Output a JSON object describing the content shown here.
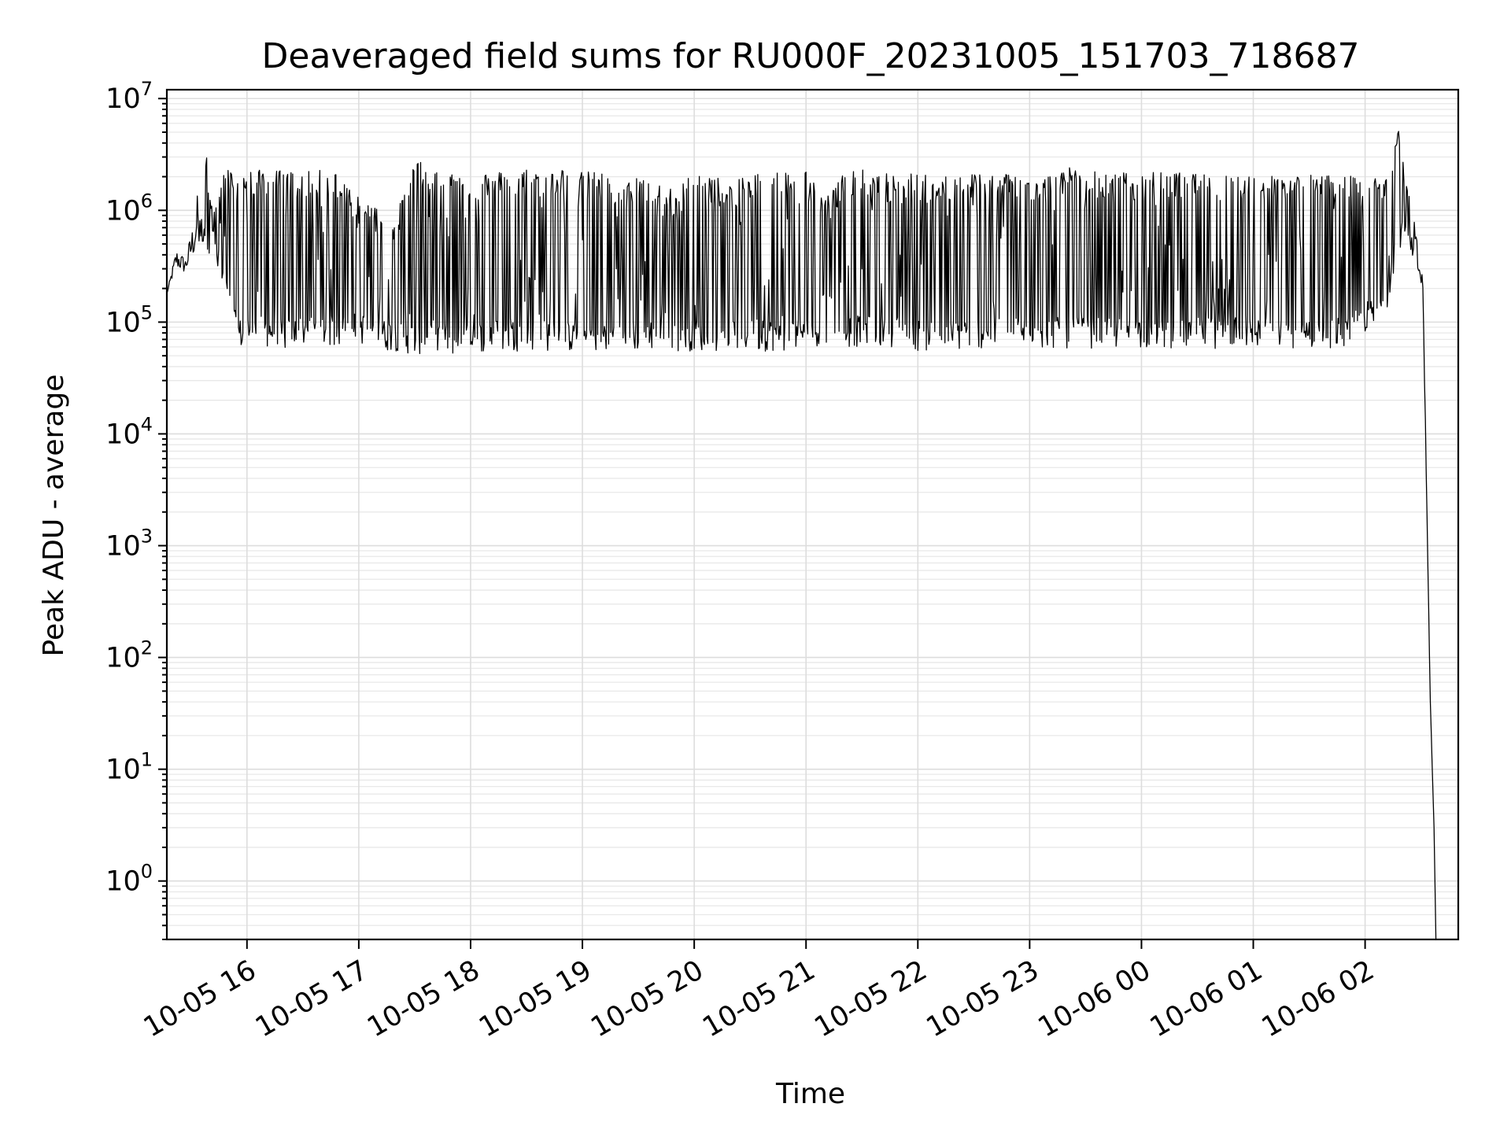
{
  "chart_data": {
    "type": "line",
    "title": "Deaveraged field sums for RU000F_20231005_151703_718687",
    "xlabel": "Time",
    "ylabel": "Peak ADU - average",
    "yscale": "log",
    "ylim": [
      0.3,
      12000000
    ],
    "xlim": [
      "2023-10-05 15:17",
      "2023-10-06 02:50"
    ],
    "grid": true,
    "legend": "none",
    "line_color": "#000000",
    "x_ticks": [
      {
        "value": "2023-10-05 16:00",
        "label": "10-05 16"
      },
      {
        "value": "2023-10-05 17:00",
        "label": "10-05 17"
      },
      {
        "value": "2023-10-05 18:00",
        "label": "10-05 18"
      },
      {
        "value": "2023-10-05 19:00",
        "label": "10-05 19"
      },
      {
        "value": "2023-10-05 20:00",
        "label": "10-05 20"
      },
      {
        "value": "2023-10-05 21:00",
        "label": "10-05 21"
      },
      {
        "value": "2023-10-05 22:00",
        "label": "10-05 22"
      },
      {
        "value": "2023-10-05 23:00",
        "label": "10-05 23"
      },
      {
        "value": "2023-10-06 00:00",
        "label": "10-06 00"
      },
      {
        "value": "2023-10-06 01:00",
        "label": "10-06 01"
      },
      {
        "value": "2023-10-06 02:00",
        "label": "10-06 02"
      }
    ],
    "y_ticks": [
      {
        "value": 1,
        "base": "10",
        "exp": "0"
      },
      {
        "value": 10,
        "base": "10",
        "exp": "1"
      },
      {
        "value": 100,
        "base": "10",
        "exp": "2"
      },
      {
        "value": 1000,
        "base": "10",
        "exp": "3"
      },
      {
        "value": 10000,
        "base": "10",
        "exp": "4"
      },
      {
        "value": 100000,
        "base": "10",
        "exp": "5"
      },
      {
        "value": 1000000,
        "base": "10",
        "exp": "6"
      },
      {
        "value": 10000000,
        "base": "10",
        "exp": "7"
      }
    ],
    "x": [
      "2023-10-05 15:17",
      "2023-10-05 15:22",
      "2023-10-05 15:27",
      "2023-10-05 15:32",
      "2023-10-05 15:37",
      "2023-10-05 15:42",
      "2023-10-05 15:48",
      "2023-10-05 15:55",
      "2023-10-05 16:02",
      "2023-10-05 16:10",
      "2023-10-05 16:20",
      "2023-10-05 16:30",
      "2023-10-05 16:40",
      "2023-10-05 16:50",
      "2023-10-05 17:00",
      "2023-10-05 17:10",
      "2023-10-05 17:20",
      "2023-10-05 17:30",
      "2023-10-05 17:40",
      "2023-10-05 17:50",
      "2023-10-05 18:00",
      "2023-10-05 18:10",
      "2023-10-05 18:20",
      "2023-10-05 18:30",
      "2023-10-05 18:40",
      "2023-10-05 18:50",
      "2023-10-05 19:00",
      "2023-10-05 19:10",
      "2023-10-05 19:20",
      "2023-10-05 19:30",
      "2023-10-05 19:40",
      "2023-10-05 19:50",
      "2023-10-05 20:00",
      "2023-10-05 20:10",
      "2023-10-05 20:20",
      "2023-10-05 20:30",
      "2023-10-05 20:40",
      "2023-10-05 20:50",
      "2023-10-05 21:00",
      "2023-10-05 21:10",
      "2023-10-05 21:20",
      "2023-10-05 21:30",
      "2023-10-05 21:40",
      "2023-10-05 21:50",
      "2023-10-05 22:00",
      "2023-10-05 22:10",
      "2023-10-05 22:20",
      "2023-10-05 22:30",
      "2023-10-05 22:40",
      "2023-10-05 22:50",
      "2023-10-05 23:00",
      "2023-10-05 23:10",
      "2023-10-05 23:20",
      "2023-10-05 23:30",
      "2023-10-05 23:40",
      "2023-10-05 23:50",
      "2023-10-06 00:00",
      "2023-10-06 00:10",
      "2023-10-06 00:20",
      "2023-10-06 00:30",
      "2023-10-06 00:40",
      "2023-10-06 00:50",
      "2023-10-06 01:00",
      "2023-10-06 01:10",
      "2023-10-06 01:20",
      "2023-10-06 01:30",
      "2023-10-06 01:40",
      "2023-10-06 01:50",
      "2023-10-06 02:00",
      "2023-10-06 02:10",
      "2023-10-06 02:18",
      "2023-10-06 02:25",
      "2023-10-06 02:31",
      "2023-10-06 02:35",
      "2023-10-06 02:37",
      "2023-10-06 02:38"
    ],
    "y": [
      180000,
      450000,
      330000,
      850000,
      4400000,
      600000,
      2200000,
      200000,
      90000,
      1400000,
      2300000,
      2000000,
      2200000,
      1800000,
      120000,
      80000,
      150000,
      2500000,
      2300000,
      1100000,
      2200000,
      120000,
      2000000,
      2400000,
      1800000,
      2200000,
      90000,
      2300000,
      80000,
      1200000,
      90000,
      1500000,
      2200000,
      70000,
      60000,
      1800000,
      700000,
      2200000,
      800000,
      90000,
      2000000,
      2200000,
      70000,
      1900000,
      2200000,
      60000,
      2100000,
      1800000,
      2200000,
      90000,
      120000,
      70000,
      2100000,
      90000,
      80000,
      2000000,
      2100000,
      2200000,
      1900000,
      2000000,
      120000,
      1600000,
      70000,
      2100000,
      90000,
      2000000,
      100000,
      2000000,
      120000,
      250000,
      5800000,
      700000,
      180000,
      40,
      3,
      0.3
    ],
    "y_max_series": [
      180000,
      450000,
      380000,
      900000,
      4400000,
      1100000,
      2400000,
      2200000,
      2300000,
      2300000,
      2300000,
      2200000,
      2300000,
      2200000,
      1300000,
      1100000,
      900000,
      2800000,
      2500000,
      2300000,
      2300000,
      2200000,
      2300000,
      2400000,
      2300000,
      2400000,
      2200000,
      2300000,
      1500000,
      2200000,
      1800000,
      1500000,
      2300000,
      2100000,
      1700000,
      2200000,
      2200000,
      2300000,
      2300000,
      1300000,
      2200000,
      2300000,
      2200000,
      2100000,
      2200000,
      1900000,
      2200000,
      2200000,
      2200000,
      2200000,
      2100000,
      2100000,
      2500000,
      2300000,
      2200000,
      2200000,
      2200000,
      2200000,
      2200000,
      2100000,
      2100000,
      2200000,
      2100000,
      2100000,
      2100000,
      2100000,
      2100000,
      2100000,
      1800000,
      2200000,
      5800000,
      1200000,
      250000,
      40,
      3,
      0.3
    ],
    "y_min_series": [
      180000,
      300000,
      270000,
      400000,
      500000,
      350000,
      150000,
      55000,
      60000,
      60000,
      55000,
      60000,
      60000,
      60000,
      65000,
      55000,
      55000,
      50000,
      55000,
      50000,
      50000,
      55000,
      55000,
      55000,
      55000,
      55000,
      52000,
      55000,
      52000,
      55000,
      55000,
      55000,
      55000,
      55000,
      55000,
      55000,
      55000,
      55000,
      60000,
      60000,
      60000,
      60000,
      60000,
      60000,
      55000,
      55000,
      55000,
      58000,
      58000,
      58000,
      58000,
      58000,
      58000,
      58000,
      58000,
      58000,
      58000,
      58000,
      58000,
      58000,
      58000,
      58000,
      58000,
      58000,
      58000,
      58000,
      58000,
      58000,
      80000,
      90000,
      500000,
      300000,
      180000,
      40,
      3,
      0.3
    ]
  }
}
